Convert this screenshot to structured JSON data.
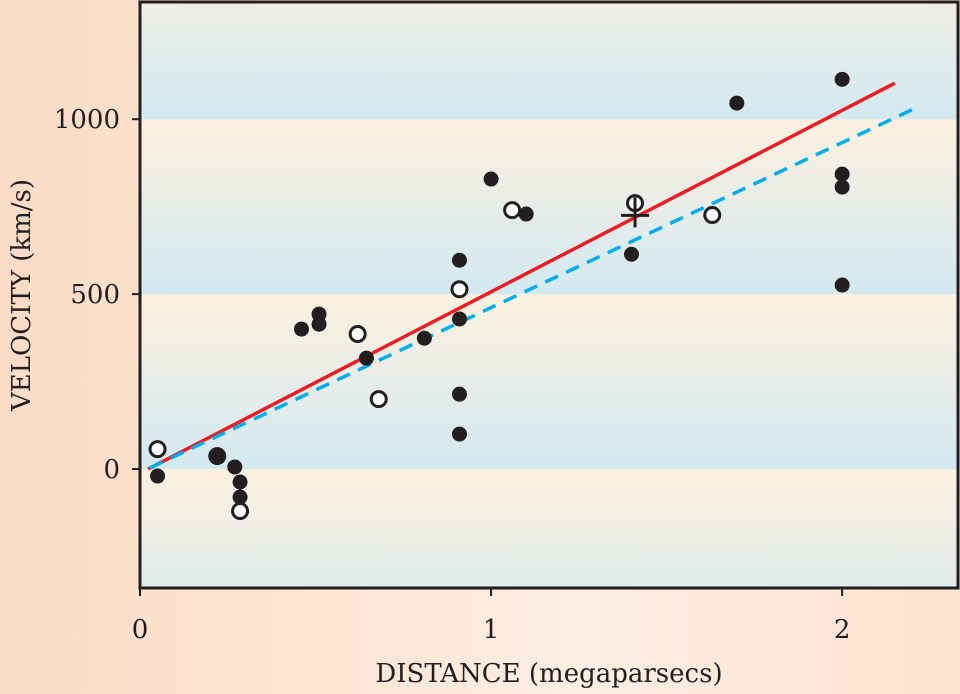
{
  "chart_data": {
    "type": "scatter",
    "title": "",
    "xlabel": "DISTANCE (megaparsecs)",
    "ylabel": "VELOCITY (km/s)",
    "xlim": [
      0,
      2.33
    ],
    "ylim": [
      -340,
      1335
    ],
    "x_ticks": [
      {
        "v": 0,
        "label": "0"
      },
      {
        "v": 1,
        "label": "1"
      },
      {
        "v": 2,
        "label": "2"
      }
    ],
    "y_ticks": [
      {
        "v": 0,
        "label": "0"
      },
      {
        "v": 500,
        "label": "500"
      },
      {
        "v": 1000,
        "label": "1000"
      }
    ],
    "grid": false,
    "series": [
      {
        "name": "filled",
        "marker": "filled-circle",
        "points": [
          [
            0.05,
            -20
          ],
          [
            0.22,
            37
          ],
          [
            0.27,
            6
          ],
          [
            0.285,
            -37
          ],
          [
            0.285,
            -80
          ],
          [
            0.46,
            400
          ],
          [
            0.51,
            443
          ],
          [
            0.51,
            414
          ],
          [
            0.645,
            317
          ],
          [
            0.81,
            374
          ],
          [
            0.91,
            597
          ],
          [
            0.91,
            429
          ],
          [
            0.91,
            214
          ],
          [
            0.91,
            100
          ],
          [
            1.0,
            829
          ],
          [
            1.1,
            729
          ],
          [
            1.4,
            614
          ],
          [
            1.7,
            1046
          ],
          [
            2.0,
            1114
          ],
          [
            2.0,
            843
          ],
          [
            2.0,
            806
          ],
          [
            2.0,
            526
          ]
        ]
      },
      {
        "name": "open",
        "marker": "open-circle",
        "points": [
          [
            0.05,
            57
          ],
          [
            0.285,
            -120
          ],
          [
            0.62,
            386
          ],
          [
            0.68,
            200
          ],
          [
            0.91,
            514
          ],
          [
            1.06,
            740
          ],
          [
            1.41,
            760
          ],
          [
            1.63,
            726
          ]
        ]
      },
      {
        "name": "cross",
        "marker": "cross",
        "points": [
          [
            1.41,
            725
          ]
        ]
      }
    ],
    "lines": [
      {
        "name": "fit-red",
        "color": "#ed1c24",
        "style": "solid",
        "from": [
          0.023,
          0
        ],
        "to": [
          2.15,
          1103
        ]
      },
      {
        "name": "fit-blue",
        "color": "#00aeef",
        "style": "dashed",
        "from": [
          0.028,
          3
        ],
        "to": [
          2.22,
          1037
        ]
      }
    ],
    "colors": {
      "band_top": "#fdf1df",
      "band_bottom": "#d2e9f1",
      "marker": "#231f20"
    }
  }
}
